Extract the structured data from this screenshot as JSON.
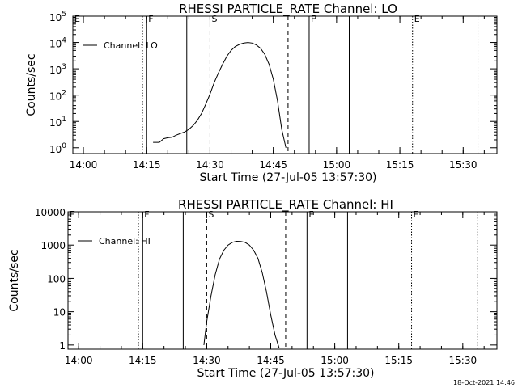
{
  "footer": {
    "timestamp": "18-Oct-2021 14:46"
  },
  "chart_data": [
    {
      "type": "line",
      "title": "RHESSI PARTICLE_RATE Channel: LO",
      "xlabel": "Start Time (27-Jul-05 13:57:30)",
      "ylabel": "Counts/sec",
      "yscale": "log",
      "ylim": [
        0.6,
        100000
      ],
      "xlim": [
        "13:57:30",
        "15:38:00"
      ],
      "x_ticks": [
        "14:00",
        "14:15",
        "14:30",
        "14:45",
        "15:00",
        "15:15",
        "15:30"
      ],
      "y_ticks": [
        {
          "value": 1,
          "label": "10",
          "exp": "0"
        },
        {
          "value": 10,
          "label": "10",
          "exp": "1"
        },
        {
          "value": 100,
          "label": "10",
          "exp": "2"
        },
        {
          "value": 1000,
          "label": "10",
          "exp": "3"
        },
        {
          "value": 10000,
          "label": "10",
          "exp": "4"
        },
        {
          "value": 100000,
          "label": "10",
          "exp": "5"
        }
      ],
      "legend": {
        "label": "Channel: LO",
        "position": "top-left"
      },
      "markers": [
        {
          "time": "13:57:30",
          "style": "dotted",
          "label": "E"
        },
        {
          "time": "14:14:00",
          "style": "dotted",
          "label": ""
        },
        {
          "time": "14:15:00",
          "style": "solid",
          "label": "F"
        },
        {
          "time": "14:24:30",
          "style": "solid",
          "label": ""
        },
        {
          "time": "14:30:00",
          "style": "dashed",
          "label": "S"
        },
        {
          "time": "14:48:30",
          "style": "dashed",
          "label": ""
        },
        {
          "time": "14:53:30",
          "style": "solid",
          "label": "F"
        },
        {
          "time": "15:03:00",
          "style": "solid",
          "label": ""
        },
        {
          "time": "15:18:00",
          "style": "dotted",
          "label": "E"
        },
        {
          "time": "15:33:30",
          "style": "dotted",
          "label": ""
        }
      ],
      "series": [
        {
          "x": [
            "14:16:30",
            "14:18:00",
            "14:19:00",
            "14:20:00",
            "14:21:00",
            "14:22:00",
            "14:23:00",
            "14:24:00",
            "14:25:00",
            "14:26:00",
            "14:27:00",
            "14:28:00",
            "14:29:00",
            "14:30:00",
            "14:31:00",
            "14:32:00",
            "14:33:00",
            "14:34:00",
            "14:35:00",
            "14:36:00",
            "14:37:00",
            "14:38:00",
            "14:39:00",
            "14:40:00",
            "14:41:00",
            "14:42:00",
            "14:43:00",
            "14:44:00",
            "14:45:00",
            "14:46:00",
            "14:47:00",
            "14:48:00"
          ],
          "y": [
            1.6,
            1.6,
            2.2,
            2.4,
            2.5,
            3,
            3.5,
            4,
            5,
            7,
            11,
            20,
            45,
            110,
            300,
            700,
            1500,
            3000,
            5000,
            7000,
            8500,
            9500,
            10000,
            9500,
            8000,
            6000,
            3500,
            1500,
            400,
            60,
            5,
            1
          ]
        }
      ]
    },
    {
      "type": "line",
      "title": "RHESSI PARTICLE_RATE Channel: HI",
      "xlabel": "Start Time (27-Jul-05 13:57:30)",
      "ylabel": "Counts/sec",
      "yscale": "log",
      "ylim": [
        0.75,
        10000
      ],
      "xlim": [
        "13:57:30",
        "15:38:00"
      ],
      "x_ticks": [
        "14:00",
        "14:15",
        "14:30",
        "14:45",
        "15:00",
        "15:15",
        "15:30"
      ],
      "y_ticks": [
        {
          "value": 1,
          "label": "1"
        },
        {
          "value": 10,
          "label": "10"
        },
        {
          "value": 100,
          "label": "100"
        },
        {
          "value": 1000,
          "label": "1000"
        },
        {
          "value": 10000,
          "label": "10000"
        }
      ],
      "legend": {
        "label": "Channel: HI",
        "position": "top-left"
      },
      "markers": [
        {
          "time": "13:57:30",
          "style": "dotted",
          "label": "E"
        },
        {
          "time": "14:14:00",
          "style": "dotted",
          "label": ""
        },
        {
          "time": "14:15:00",
          "style": "solid",
          "label": "F"
        },
        {
          "time": "14:24:30",
          "style": "solid",
          "label": ""
        },
        {
          "time": "14:30:00",
          "style": "dashed",
          "label": "S"
        },
        {
          "time": "14:48:30",
          "style": "dashed",
          "label": ""
        },
        {
          "time": "14:53:30",
          "style": "solid",
          "label": "F"
        },
        {
          "time": "15:03:00",
          "style": "solid",
          "label": ""
        },
        {
          "time": "15:18:00",
          "style": "dotted",
          "label": "E"
        },
        {
          "time": "15:33:30",
          "style": "dotted",
          "label": ""
        }
      ],
      "series": [
        {
          "x": [
            "14:29:20",
            "14:30:00",
            "14:31:00",
            "14:32:00",
            "14:33:00",
            "14:34:00",
            "14:35:00",
            "14:36:00",
            "14:37:00",
            "14:38:00",
            "14:39:00",
            "14:40:00",
            "14:41:00",
            "14:42:00",
            "14:43:00",
            "14:44:00",
            "14:45:00",
            "14:46:00",
            "14:47:00"
          ],
          "y": [
            1,
            5,
            30,
            130,
            380,
            700,
            1000,
            1200,
            1300,
            1280,
            1200,
            1000,
            700,
            400,
            150,
            40,
            8,
            2,
            0.8
          ]
        }
      ]
    }
  ]
}
